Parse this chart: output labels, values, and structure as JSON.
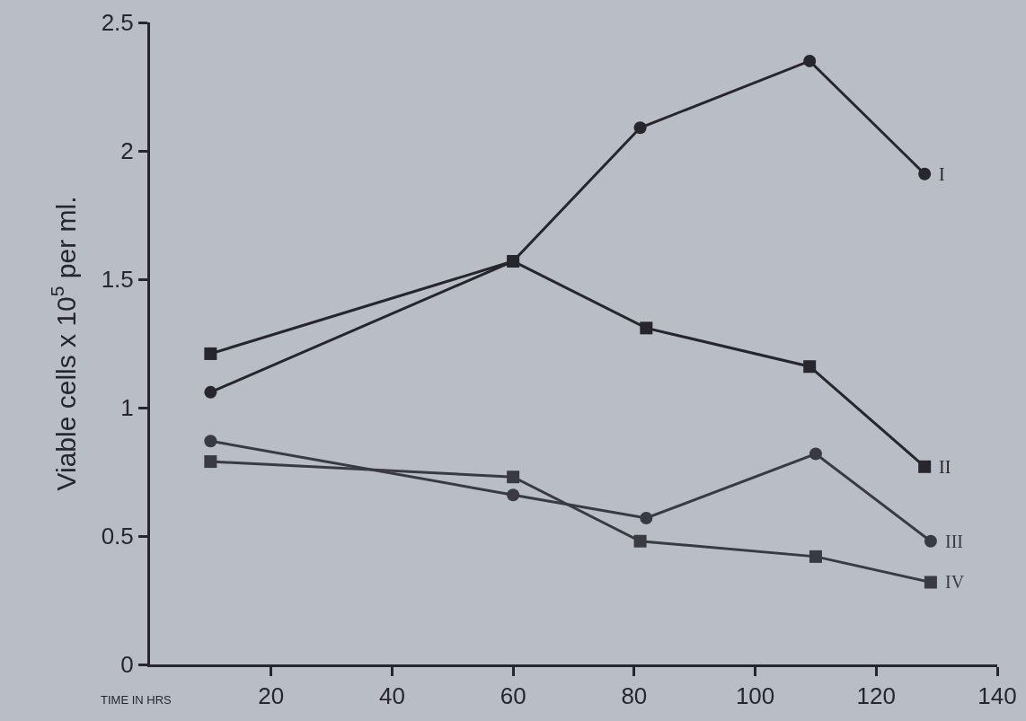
{
  "chart_data": {
    "type": "line",
    "xlabel": "TIME IN HRS",
    "ylabel": "Viable cells x 10$^{5}$ per ml.",
    "xlim": [
      0,
      140
    ],
    "xticks": [
      20,
      40,
      60,
      80,
      100,
      120,
      140
    ],
    "ylim": [
      0,
      2.5
    ],
    "yticks": [
      0,
      0.5,
      1,
      1.5,
      2,
      2.5
    ],
    "grid": false,
    "legend": false,
    "series": [
      {
        "name": "I",
        "color": "#26262c",
        "marker": "circle",
        "x": [
          10,
          60,
          81,
          109,
          128
        ],
        "values": [
          1.06,
          1.57,
          2.09,
          2.35,
          1.91
        ]
      },
      {
        "name": "II",
        "color": "#26262c",
        "marker": "square",
        "x": [
          10,
          60,
          82,
          109,
          128
        ],
        "values": [
          1.21,
          1.57,
          1.31,
          1.16,
          0.77
        ]
      },
      {
        "name": "III",
        "color": "#3a3a42",
        "marker": "circle",
        "x": [
          10,
          60,
          82,
          110,
          129
        ],
        "values": [
          0.87,
          0.66,
          0.57,
          0.82,
          0.48
        ]
      },
      {
        "name": "IV",
        "color": "#3a3a42",
        "marker": "square",
        "x": [
          10,
          60,
          81,
          110,
          129
        ],
        "values": [
          0.79,
          0.73,
          0.48,
          0.42,
          0.32
        ]
      }
    ]
  }
}
